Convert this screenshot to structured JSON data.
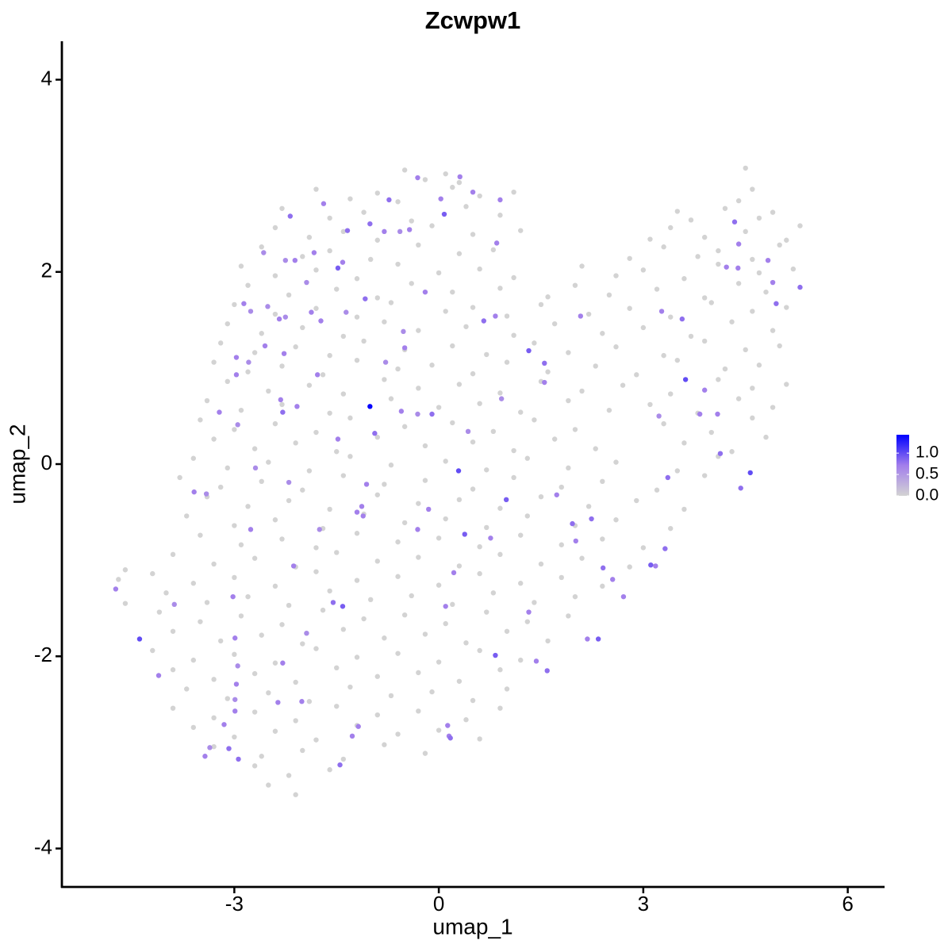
{
  "chart_data": {
    "type": "scatter",
    "title": "Zcwpw1",
    "x_label": "umap_1",
    "y_label": "umap_2",
    "xlim": [
      -5.53,
      6.54
    ],
    "ylim": [
      -4.4,
      4.4
    ],
    "xticks": [
      -3,
      0,
      3,
      6
    ],
    "yticks": [
      -4,
      -2,
      0,
      2,
      4
    ],
    "color_lim": [
      0,
      1.43
    ],
    "colors": [
      "#d3d3d3",
      "#a27eec",
      "#0000ff"
    ],
    "color_ticks": [
      {
        "value": 0,
        "label": "0.0"
      },
      {
        "value": 0.5,
        "label": "0.5"
      },
      {
        "value": 1,
        "label": "1.0"
      }
    ],
    "x": [
      -0.5,
      -0.2,
      0.1,
      0.3,
      4.5,
      -1.8,
      -1.3,
      -0.9,
      -0.6,
      0.2,
      0.6,
      1.1,
      4.4,
      4.6,
      -2.3,
      -1.6,
      -1.1,
      -0.4,
      0.4,
      0.9,
      3.5,
      3.7,
      4.2,
      4.7,
      4.9,
      -2.4,
      -1.9,
      -1.4,
      -0.9,
      -0.1,
      0.5,
      1.2,
      3.1,
      3.4,
      3.9,
      4.5,
      5.1,
      5.3,
      -2.6,
      -2.0,
      -1.6,
      -1.0,
      -0.3,
      0.3,
      0.8,
      2.8,
      3.3,
      3.8,
      4.1,
      4.6,
      5.0,
      -2.9,
      -2.4,
      -1.8,
      -1.2,
      -0.6,
      0.0,
      0.6,
      1.1,
      2.1,
      2.6,
      3.0,
      3.6,
      4.1,
      4.7,
      5.2,
      -2.8,
      -2.2,
      -1.5,
      -0.9,
      -0.4,
      0.2,
      0.9,
      1.6,
      2.0,
      2.5,
      3.2,
      3.9,
      4.4,
      4.8,
      -3.0,
      -2.4,
      -1.8,
      -1.2,
      -0.7,
      0.1,
      0.5,
      1.0,
      1.5,
      2.2,
      2.8,
      3.4,
      4.0,
      4.6,
      5.1,
      -3.1,
      -2.6,
      -2.0,
      -1.4,
      -0.8,
      -0.3,
      0.4,
      1.1,
      1.7,
      2.4,
      3.0,
      3.7,
      4.3,
      4.9,
      -3.2,
      -2.7,
      -2.1,
      -1.6,
      -1.1,
      -0.5,
      0.2,
      0.7,
      1.4,
      1.9,
      2.6,
      3.3,
      3.9,
      4.5,
      5.0,
      -3.3,
      -2.8,
      -2.3,
      -1.7,
      -1.2,
      -0.6,
      -0.1,
      0.5,
      1.0,
      1.6,
      2.3,
      2.9,
      3.5,
      4.2,
      4.7,
      -3.1,
      -2.5,
      -1.9,
      -1.4,
      -0.8,
      -0.3,
      0.3,
      0.9,
      1.5,
      2.1,
      2.7,
      3.4,
      4.1,
      4.6,
      5.1,
      -3.4,
      -2.9,
      -2.3,
      -1.6,
      -0.7,
      0.0,
      0.6,
      1.2,
      1.9,
      2.5,
      3.1,
      3.8,
      4.4,
      4.9,
      -3.5,
      -3.0,
      -2.4,
      -1.8,
      -1.3,
      -0.5,
      0.2,
      0.8,
      1.4,
      2.0,
      3.3,
      4.0,
      4.6,
      -3.3,
      -2.7,
      -2.1,
      -1.5,
      -0.9,
      -0.2,
      0.5,
      1.1,
      1.7,
      2.3,
      3.6,
      4.3,
      4.8,
      -3.6,
      -3.1,
      -2.5,
      -1.9,
      -1.3,
      -0.7,
      0.1,
      0.7,
      1.3,
      1.9,
      2.6,
      3.5,
      4.1,
      -3.8,
      -3.2,
      -2.6,
      -2.0,
      -1.4,
      -0.8,
      -0.2,
      0.5,
      1.1,
      1.8,
      2.4,
      3.2,
      3.9,
      -3.4,
      -2.8,
      -2.2,
      -1.6,
      -0.9,
      -0.3,
      0.3,
      0.9,
      1.5,
      2.2,
      2.9,
      3.6,
      -3.7,
      -3.0,
      -2.4,
      -1.7,
      -1.1,
      -0.5,
      0.1,
      0.7,
      1.3,
      2.0,
      2.6,
      3.4,
      -3.5,
      -2.9,
      -2.3,
      -1.8,
      -1.2,
      -0.6,
      0.0,
      0.6,
      1.2,
      1.8,
      2.4,
      3.0,
      -3.9,
      -3.3,
      -2.7,
      -2.1,
      -1.5,
      -0.9,
      -0.3,
      0.3,
      0.9,
      1.5,
      2.1,
      2.8,
      -4.2,
      -3.6,
      -3.0,
      -2.4,
      -1.8,
      -1.2,
      -0.6,
      0.0,
      0.6,
      1.2,
      1.8,
      2.4,
      -4.0,
      -3.4,
      -2.8,
      -2.2,
      -1.6,
      -1.0,
      -0.4,
      0.2,
      0.8,
      1.4,
      2.0,
      -4.1,
      -3.5,
      -2.9,
      -2.3,
      -1.7,
      -1.1,
      -0.5,
      0.1,
      0.7,
      1.3,
      1.9,
      -3.9,
      -3.2,
      -2.6,
      -2.0,
      -1.4,
      -0.8,
      -0.2,
      0.4,
      1.0,
      1.6,
      -4.2,
      -3.6,
      -3.0,
      -2.4,
      -1.8,
      -1.2,
      -0.6,
      0.0,
      0.6,
      1.2,
      -3.9,
      -3.3,
      -2.7,
      -2.1,
      -1.5,
      -0.9,
      -0.3,
      0.3,
      0.9,
      -3.7,
      -3.1,
      -2.5,
      -1.9,
      -1.3,
      -0.7,
      -0.1,
      0.5,
      1.0,
      -3.9,
      -3.3,
      -2.7,
      -2.1,
      -1.5,
      -0.9,
      -0.3,
      0.4,
      0.9,
      -3.6,
      -3.0,
      -2.4,
      -1.8,
      -1.2,
      -0.6,
      0.0,
      0.6,
      -3.3,
      -2.6,
      -2.0,
      -1.4,
      -0.8,
      -0.2,
      -2.7,
      -2.2,
      -1.6,
      -2.5,
      -2.1,
      -4.7,
      -4.6,
      -4.6,
      -4.74,
      -4.39,
      -4.11,
      -3.59,
      -3.41,
      -3.88,
      -3.43,
      -3.36,
      -3.08,
      -2.94,
      -3.15,
      -2.99,
      -2.99,
      -2.97,
      -2.95,
      -2.99,
      -3.02,
      -3.22,
      -2.95,
      -2.97,
      -2.97,
      -2.79,
      -2.76,
      -2.69,
      -2.86,
      -2.76,
      -2.55,
      -2.57,
      -2.51,
      -2.32,
      -2.29,
      -2.27,
      -2.34,
      -2.25,
      -2.18,
      -2.25,
      -2.11,
      -1.94,
      -2.08,
      -2.2,
      -2.13,
      -2.29,
      -2.36,
      -1.94,
      -2.01,
      -1.83,
      -1.87,
      -1.73,
      -1.78,
      -1.75,
      -1.69,
      -1.48,
      -1.41,
      -1.34,
      -1.36,
      -1.48,
      -1.55,
      -1.41,
      -1.2,
      -1.13,
      -1.11,
      -1.06,
      -1.08,
      -1.01,
      -0.94,
      -1.27,
      -1.18,
      -1.45,
      -1.01,
      -0.8,
      -0.73,
      -0.78,
      -0.57,
      -0.55,
      -0.5,
      -0.52,
      -0.43,
      -0.31,
      -0.31,
      -0.31,
      -0.15,
      -0.1,
      -0.2,
      0.08,
      0.03,
      0.31,
      0.29,
      0.22,
      0.1,
      0.15,
      0.17,
      0.13,
      0.38,
      0.43,
      0.5,
      0.66,
      0.76,
      0.9,
      0.85,
      0.83,
      0.83,
      0.92,
      0.99,
      1.32,
      1.32,
      1.55,
      1.43,
      1.55,
      1.73,
      1.59,
      1.96,
      2.01,
      2.08,
      2.24,
      2.18,
      2.34,
      2.41,
      2.55,
      2.71,
      3.11,
      3.18,
      3.32,
      3.27,
      3.36,
      3.62,
      3.57,
      3.9,
      3.83,
      4.09,
      4.13,
      4.22,
      4.34,
      4.39,
      4.43,
      4.57,
      4.4,
      4.83,
      4.9,
      4.95,
      5.3,
      3.23
    ],
    "y": [
      3.06,
      2.96,
      3.02,
      2.93,
      3.08,
      2.86,
      2.76,
      2.82,
      2.73,
      2.88,
      2.79,
      2.83,
      2.74,
      2.86,
      2.66,
      2.56,
      2.62,
      2.53,
      2.68,
      2.59,
      2.63,
      2.54,
      2.66,
      2.56,
      2.62,
      2.46,
      2.36,
      2.42,
      2.33,
      2.48,
      2.39,
      2.43,
      2.34,
      2.46,
      2.36,
      2.42,
      2.33,
      2.48,
      2.26,
      2.16,
      2.22,
      2.13,
      2.28,
      2.19,
      2.23,
      2.14,
      2.26,
      2.16,
      2.22,
      2.13,
      2.28,
      2.06,
      1.96,
      2.02,
      1.93,
      2.08,
      1.99,
      2.03,
      1.94,
      2.06,
      1.96,
      2.02,
      1.93,
      2.08,
      1.99,
      2.03,
      1.86,
      1.76,
      1.82,
      1.73,
      1.88,
      1.79,
      1.83,
      1.74,
      1.86,
      1.76,
      1.82,
      1.73,
      1.88,
      1.79,
      1.66,
      1.56,
      1.62,
      1.53,
      1.68,
      1.59,
      1.63,
      1.54,
      1.66,
      1.56,
      1.62,
      1.53,
      1.68,
      1.59,
      1.63,
      1.46,
      1.36,
      1.42,
      1.33,
      1.48,
      1.39,
      1.43,
      1.34,
      1.46,
      1.36,
      1.42,
      1.33,
      1.48,
      1.39,
      1.26,
      1.16,
      1.22,
      1.13,
      1.28,
      1.19,
      1.23,
      1.14,
      1.26,
      1.16,
      1.22,
      1.13,
      1.28,
      1.19,
      1.23,
      1.06,
      0.96,
      1.02,
      0.93,
      1.08,
      0.99,
      1.03,
      0.94,
      1.06,
      0.96,
      1.02,
      0.93,
      1.08,
      0.99,
      1.03,
      0.86,
      0.76,
      0.82,
      0.73,
      0.88,
      0.79,
      0.83,
      0.74,
      0.86,
      0.76,
      0.82,
      0.73,
      0.88,
      0.79,
      0.83,
      0.66,
      0.56,
      0.62,
      0.53,
      0.68,
      0.59,
      0.63,
      0.54,
      0.66,
      0.56,
      0.62,
      0.53,
      0.68,
      0.59,
      0.46,
      0.36,
      0.42,
      0.33,
      0.48,
      0.39,
      0.43,
      0.34,
      0.46,
      0.36,
      0.42,
      0.33,
      0.48,
      0.26,
      0.16,
      0.22,
      0.13,
      0.28,
      0.19,
      0.23,
      0.14,
      0.26,
      0.16,
      0.22,
      0.13,
      0.28,
      0.06,
      -0.04,
      0.02,
      -0.07,
      0.08,
      -0.01,
      0.03,
      -0.06,
      0.06,
      -0.04,
      0.02,
      -0.07,
      0.08,
      -0.14,
      -0.24,
      -0.18,
      -0.27,
      -0.12,
      -0.21,
      -0.17,
      -0.26,
      -0.14,
      -0.24,
      -0.18,
      -0.27,
      -0.12,
      -0.34,
      -0.44,
      -0.38,
      -0.47,
      -0.32,
      -0.41,
      -0.37,
      -0.46,
      -0.34,
      -0.44,
      -0.38,
      -0.47,
      -0.54,
      -0.64,
      -0.58,
      -0.67,
      -0.52,
      -0.61,
      -0.57,
      -0.66,
      -0.54,
      -0.64,
      -0.58,
      -0.67,
      -0.74,
      -0.84,
      -0.78,
      -0.87,
      -0.72,
      -0.81,
      -0.77,
      -0.86,
      -0.74,
      -0.84,
      -0.78,
      -0.87,
      -0.94,
      -1.04,
      -0.98,
      -1.07,
      -0.92,
      -1.01,
      -0.97,
      -1.06,
      -0.94,
      -1.04,
      -0.98,
      -1.07,
      -1.14,
      -1.24,
      -1.18,
      -1.27,
      -1.12,
      -1.21,
      -1.17,
      -1.26,
      -1.14,
      -1.24,
      -1.18,
      -1.27,
      -1.34,
      -1.44,
      -1.38,
      -1.47,
      -1.32,
      -1.41,
      -1.37,
      -1.46,
      -1.34,
      -1.44,
      -1.38,
      -1.54,
      -1.64,
      -1.58,
      -1.67,
      -1.52,
      -1.61,
      -1.57,
      -1.66,
      -1.54,
      -1.64,
      -1.58,
      -1.74,
      -1.84,
      -1.78,
      -1.87,
      -1.72,
      -1.81,
      -1.77,
      -1.86,
      -1.74,
      -1.84,
      -1.94,
      -2.04,
      -1.98,
      -2.07,
      -1.92,
      -2.01,
      -1.97,
      -2.06,
      -1.94,
      -2.04,
      -2.14,
      -2.24,
      -2.18,
      -2.27,
      -2.12,
      -2.21,
      -2.17,
      -2.26,
      -2.14,
      -2.34,
      -2.44,
      -2.38,
      -2.47,
      -2.32,
      -2.41,
      -2.37,
      -2.46,
      -2.34,
      -2.54,
      -2.64,
      -2.58,
      -2.67,
      -2.52,
      -2.61,
      -2.57,
      -2.66,
      -2.54,
      -2.74,
      -2.84,
      -2.78,
      -2.87,
      -2.72,
      -2.81,
      -2.77,
      -2.86,
      -2.94,
      -3.04,
      -2.98,
      -3.07,
      -2.92,
      -3.01,
      -3.14,
      -3.24,
      -3.18,
      -3.34,
      -3.44,
      -1.2,
      -1.1,
      -1.45,
      -1.3,
      -1.82,
      -2.2,
      -0.29,
      -0.31,
      -1.46,
      -3.04,
      -2.95,
      -2.96,
      -3.07,
      -2.71,
      -2.57,
      -2.45,
      -2.29,
      -2.1,
      -1.81,
      -1.38,
      0.54,
      0.41,
      0.93,
      1.11,
      1.06,
      -0.68,
      -0.04,
      1.67,
      1.59,
      1.23,
      2.2,
      1.64,
      0.67,
      0.54,
      1.15,
      1.51,
      1.53,
      2.58,
      2.12,
      2.12,
      1.89,
      0.6,
      -0.19,
      -1.06,
      -2.07,
      -2.48,
      -1.76,
      -2.47,
      2.2,
      1.58,
      1.49,
      0.93,
      -0.68,
      2.71,
      2.04,
      2.1,
      2.43,
      1.58,
      0.26,
      -1.44,
      -1.48,
      -0.5,
      -0.44,
      -0.54,
      -0.21,
      1.72,
      0.6,
      0.32,
      -2.83,
      -2.73,
      -3.13,
      2.5,
      2.42,
      2.75,
      1.06,
      2.42,
      0.55,
      1.21,
      1.38,
      2.44,
      0.52,
      -0.68,
      2.98,
      -0.47,
      0.52,
      1.79,
      2.6,
      2.76,
      2.99,
      -0.07,
      -1.13,
      -1.48,
      -2.83,
      -2.85,
      -2.72,
      -0.73,
      0.34,
      2.83,
      1.49,
      -0.77,
      2.75,
      2.3,
      1.54,
      -1.99,
      0.68,
      -0.37,
      1.18,
      -1.54,
      1.05,
      -2.05,
      0.85,
      -0.32,
      -2.15,
      -0.62,
      -0.8,
      1.54,
      -0.57,
      -1.82,
      -1.82,
      -1.08,
      -1.2,
      -1.38,
      -1.05,
      -1.06,
      -0.88,
      1.59,
      -0.14,
      0.88,
      1.51,
      0.77,
      0.52,
      0.52,
      0.11,
      2.05,
      2.52,
      2.04,
      -0.25,
      -0.09,
      2.29,
      2.12,
      1.89,
      1.67,
      1.84,
      0.5
    ],
    "expression": [
      0,
      0,
      0,
      0,
      0,
      0,
      0,
      0,
      0,
      0,
      0,
      0,
      0,
      0,
      0,
      0,
      0,
      0,
      0,
      0,
      0,
      0,
      0,
      0,
      0,
      0,
      0,
      0,
      0,
      0,
      0,
      0,
      0,
      0,
      0,
      0,
      0,
      0,
      0,
      0,
      0,
      0,
      0,
      0,
      0,
      0,
      0,
      0,
      0,
      0,
      0,
      0,
      0,
      0,
      0,
      0,
      0,
      0,
      0,
      0,
      0,
      0,
      0,
      0,
      0,
      0,
      0,
      0,
      0,
      0,
      0,
      0,
      0,
      0,
      0,
      0,
      0,
      0,
      0,
      0,
      0,
      0,
      0,
      0,
      0,
      0,
      0,
      0,
      0,
      0,
      0,
      0,
      0,
      0,
      0,
      0,
      0,
      0,
      0,
      0,
      0,
      0,
      0,
      0,
      0,
      0,
      0,
      0,
      0,
      0,
      0,
      0,
      0,
      0,
      0,
      0,
      0,
      0,
      0,
      0,
      0,
      0,
      0,
      0,
      0,
      0,
      0,
      0,
      0,
      0,
      0,
      0,
      0,
      0,
      0,
      0,
      0,
      0,
      0,
      0,
      0,
      0,
      0,
      0,
      0,
      0,
      0,
      0,
      0,
      0,
      0,
      0,
      0,
      0,
      0,
      0,
      0,
      0,
      0,
      0,
      0,
      0,
      0,
      0,
      0,
      0,
      0,
      0,
      0,
      0,
      0,
      0,
      0,
      0,
      0,
      0,
      0,
      0,
      0,
      0,
      0,
      0,
      0,
      0,
      0,
      0,
      0,
      0,
      0,
      0,
      0,
      0,
      0,
      0,
      0,
      0,
      0,
      0,
      0,
      0,
      0,
      0,
      0,
      0,
      0,
      0,
      0,
      0,
      0,
      0,
      0,
      0,
      0,
      0,
      0,
      0,
      0,
      0,
      0,
      0,
      0,
      0,
      0,
      0,
      0,
      0,
      0,
      0,
      0,
      0,
      0,
      0,
      0,
      0,
      0,
      0,
      0,
      0,
      0,
      0,
      0,
      0,
      0,
      0,
      0,
      0,
      0,
      0,
      0,
      0,
      0,
      0,
      0,
      0,
      0,
      0,
      0,
      0,
      0,
      0,
      0,
      0,
      0,
      0,
      0,
      0,
      0,
      0,
      0,
      0,
      0,
      0,
      0,
      0,
      0,
      0,
      0,
      0,
      0,
      0,
      0,
      0,
      0,
      0,
      0,
      0,
      0,
      0,
      0,
      0,
      0,
      0,
      0,
      0,
      0,
      0,
      0,
      0,
      0,
      0,
      0,
      0,
      0,
      0,
      0,
      0,
      0,
      0,
      0,
      0,
      0,
      0,
      0,
      0,
      0,
      0,
      0,
      0,
      0,
      0,
      0,
      0,
      0,
      0,
      0,
      0,
      0,
      0,
      0,
      0,
      0,
      0,
      0,
      0,
      0,
      0,
      0,
      0,
      0,
      0,
      0,
      0,
      0,
      0,
      0,
      0,
      0,
      0,
      0,
      0,
      0,
      0,
      0,
      0,
      0,
      0,
      0,
      0,
      0,
      0,
      0,
      0,
      0,
      0,
      0,
      0,
      0,
      0,
      0,
      0,
      0,
      0.7,
      1.0,
      0.7,
      0.7,
      0.6,
      0.6,
      0.7,
      0.6,
      0.8,
      0.8,
      0.7,
      0.7,
      0.6,
      0.7,
      0.6,
      0.7,
      0.7,
      0.7,
      0.6,
      0.7,
      0.7,
      0.6,
      0.7,
      0.6,
      0.7,
      0.6,
      0.7,
      0.6,
      0.6,
      0.7,
      0.8,
      0.7,
      0.7,
      0.6,
      0.8,
      0.6,
      0.7,
      0.6,
      0.7,
      0.6,
      0.7,
      0.7,
      0.7,
      0.6,
      0.7,
      0.7,
      0.7,
      0.7,
      0.7,
      0.6,
      0.7,
      0.9,
      0.7,
      0.8,
      0.6,
      0.7,
      0.8,
      0.9,
      0.7,
      0.7,
      0.7,
      0.7,
      0.8,
      1.4,
      0.8,
      0.7,
      0.7,
      0.8,
      0.8,
      0.7,
      0.8,
      0.6,
      0.6,
      0.7,
      0.7,
      0.6,
      0.7,
      0.6,
      0.7,
      0.7,
      0.7,
      0.8,
      0.7,
      0.9,
      0.7,
      0.7,
      1.0,
      0.7,
      0.7,
      0.7,
      0.8,
      0.7,
      0.9,
      0.6,
      0.7,
      0.8,
      0.7,
      0.7,
      0.7,
      0.7,
      0.9,
      0.6,
      0.9,
      0.9,
      0.7,
      0.8,
      0.7,
      0.7,
      0.7,
      0.8,
      0.8,
      0.7,
      0.7,
      0.8,
      0.7,
      0.9,
      0.8,
      0.7,
      0.7,
      0.9,
      0.7,
      0.8,
      0.7,
      0.8,
      1.0,
      0.8,
      0.7,
      0.7,
      0.7,
      0.8,
      0.7,
      0.8,
      0.7,
      0.8,
      1.0,
      0.7,
      0.7,
      0.7,
      0.8,
      0.8,
      0.6
    ]
  }
}
